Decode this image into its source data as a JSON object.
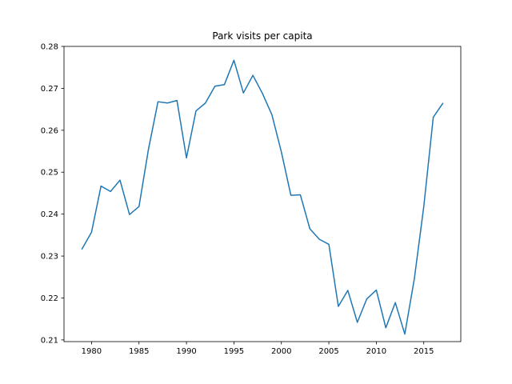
{
  "chart_data": {
    "type": "line",
    "title": "Park visits per capita",
    "xlabel": "",
    "ylabel": "",
    "xlim": [
      1977.1,
      2018.9
    ],
    "ylim": [
      0.2096,
      0.28
    ],
    "x_ticks": [
      1980,
      1985,
      1990,
      1995,
      2000,
      2005,
      2010,
      2015
    ],
    "y_ticks": [
      0.21,
      0.22,
      0.23,
      0.24,
      0.25,
      0.26,
      0.27,
      0.28
    ],
    "x_tick_labels": [
      "1980",
      "1985",
      "1990",
      "1995",
      "2000",
      "2005",
      "2010",
      "2015"
    ],
    "y_tick_labels": [
      "0.21",
      "0.22",
      "0.23",
      "0.24",
      "0.25",
      "0.26",
      "0.27",
      "0.28"
    ],
    "grid": false,
    "legend": "none",
    "series": [
      {
        "color": "#1f77b4",
        "x": [
          1979,
          1980,
          1981,
          1982,
          1983,
          1984,
          1985,
          1986,
          1987,
          1988,
          1989,
          1990,
          1991,
          1992,
          1993,
          1994,
          1995,
          1996,
          1997,
          1998,
          1999,
          2000,
          2001,
          2002,
          2003,
          2004,
          2005,
          2006,
          2007,
          2008,
          2009,
          2010,
          2011,
          2012,
          2013,
          2014,
          2015,
          2016,
          2017
        ],
        "values": [
          0.2317,
          0.2357,
          0.2467,
          0.2454,
          0.2481,
          0.2399,
          0.2418,
          0.2555,
          0.2668,
          0.2665,
          0.2671,
          0.2534,
          0.2646,
          0.2665,
          0.2705,
          0.2709,
          0.2767,
          0.2689,
          0.2731,
          0.2688,
          0.2637,
          0.2548,
          0.2445,
          0.2446,
          0.2365,
          0.234,
          0.2328,
          0.218,
          0.2218,
          0.2142,
          0.2198,
          0.2219,
          0.2129,
          0.2189,
          0.2114,
          0.2245,
          0.2418,
          0.2631,
          0.2664
        ]
      }
    ]
  }
}
